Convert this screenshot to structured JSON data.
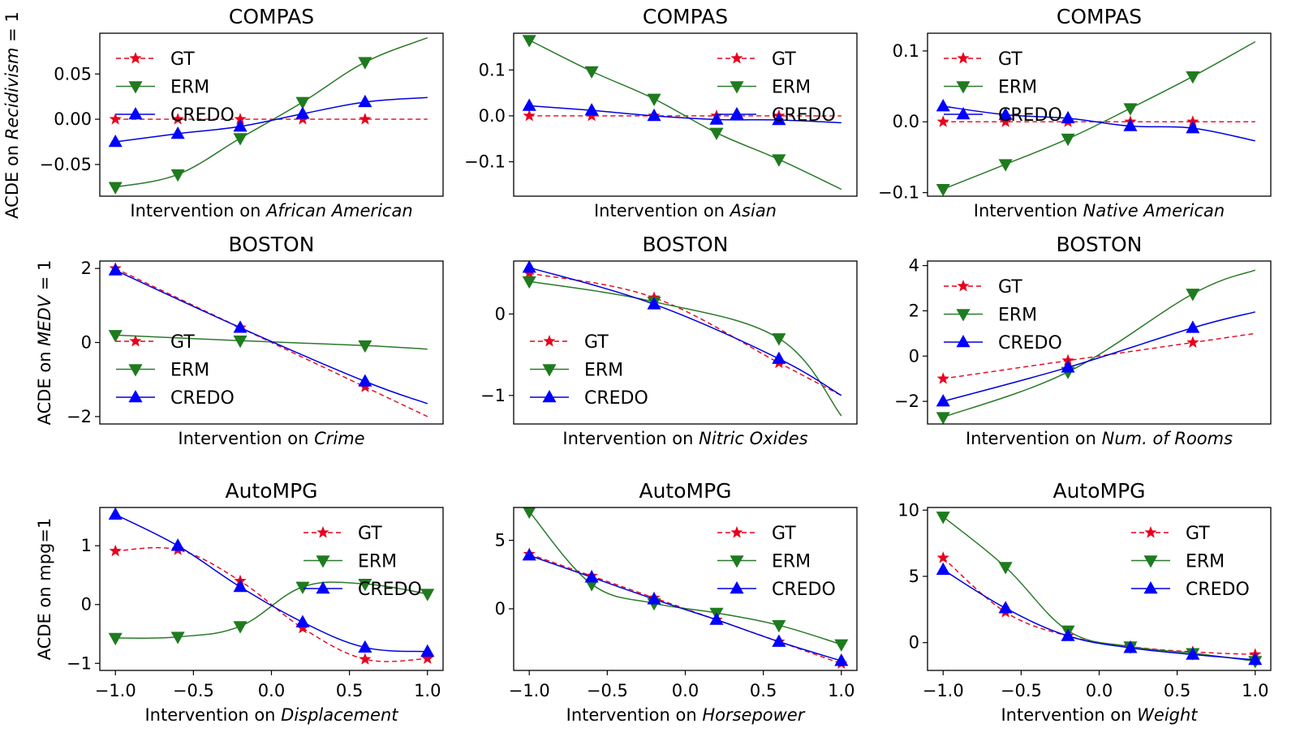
{
  "chart_data": [
    {
      "type": "line",
      "title": "COMPAS",
      "xlabel_prefix": "Intervention on ",
      "xlabel_italic": "African American",
      "ylabel_prefix": "ACDE on ",
      "ylabel_italic": "Recidivism",
      "ylabel_suffix": " = 1",
      "xlim": [
        -1.1,
        1.1
      ],
      "ylim": [
        -0.085,
        0.095
      ],
      "yticks": [
        -0.05,
        0.0,
        0.05
      ],
      "ytick_labels": [
        "−0.05",
        "0.00",
        "0.05"
      ],
      "show_xticks": false,
      "legend": "top-left",
      "x": [
        -1.0,
        -0.6,
        -0.2,
        0.2,
        0.6,
        1.0
      ],
      "series": [
        {
          "name": "GT",
          "values": [
            0.0,
            0.0,
            0.0,
            0.0,
            0.0,
            0.0
          ],
          "last_unmarked": true
        },
        {
          "name": "ERM",
          "values": [
            -0.075,
            -0.061,
            -0.021,
            0.019,
            0.063,
            0.09
          ],
          "last_unmarked": true
        },
        {
          "name": "CREDO",
          "values": [
            -0.025,
            -0.016,
            -0.008,
            0.006,
            0.019,
            0.024
          ],
          "last_unmarked": true
        }
      ]
    },
    {
      "type": "line",
      "title": "COMPAS",
      "xlabel_prefix": "Intervention on ",
      "xlabel_italic": "Asian",
      "xlim": [
        -1.1,
        1.1
      ],
      "ylim": [
        -0.175,
        0.18
      ],
      "yticks": [
        -0.1,
        0.0,
        0.1
      ],
      "ytick_labels": [
        "−0.1",
        "0.0",
        "0.1"
      ],
      "show_xticks": false,
      "legend": "top-right",
      "x": [
        -1.0,
        -0.6,
        -0.2,
        0.2,
        0.6,
        1.0
      ],
      "series": [
        {
          "name": "GT",
          "values": [
            0.0,
            0.0,
            0.0,
            0.0,
            0.0,
            0.0
          ],
          "last_unmarked": true
        },
        {
          "name": "ERM",
          "values": [
            0.165,
            0.097,
            0.037,
            -0.037,
            -0.095,
            -0.16
          ],
          "last_unmarked": true
        },
        {
          "name": "CREDO",
          "values": [
            0.022,
            0.012,
            0.0,
            -0.008,
            -0.009,
            -0.015
          ],
          "last_unmarked": true
        }
      ]
    },
    {
      "type": "line",
      "title": "COMPAS",
      "xlabel_prefix": "Intervention ",
      "xlabel_italic": "Native American",
      "xlim": [
        -1.1,
        1.1
      ],
      "ylim": [
        -0.105,
        0.125
      ],
      "yticks": [
        -0.1,
        0.0,
        0.1
      ],
      "ytick_labels": [
        "−0.1",
        "0.0",
        "0.1"
      ],
      "show_xticks": false,
      "legend": "top-left",
      "x": [
        -1.0,
        -0.6,
        -0.2,
        0.2,
        0.6,
        1.0
      ],
      "series": [
        {
          "name": "GT",
          "values": [
            0.0,
            0.0,
            0.0,
            0.0,
            0.0,
            0.0
          ],
          "last_unmarked": true
        },
        {
          "name": "ERM",
          "values": [
            -0.095,
            -0.06,
            -0.024,
            0.019,
            0.064,
            0.113
          ],
          "last_unmarked": true
        },
        {
          "name": "CREDO",
          "values": [
            0.022,
            0.01,
            0.005,
            -0.006,
            -0.009,
            -0.027
          ],
          "last_unmarked": true
        }
      ]
    },
    {
      "type": "line",
      "title": "BOSTON",
      "xlabel_prefix": "Intervention on ",
      "xlabel_italic": "Crime",
      "ylabel_prefix": "ACDE on ",
      "ylabel_italic": "MEDV",
      "ylabel_suffix": " = 1",
      "xlim": [
        -1.1,
        1.1
      ],
      "ylim": [
        -2.2,
        2.2
      ],
      "yticks": [
        -2,
        0,
        2
      ],
      "ytick_labels": [
        "−2",
        "0",
        "2"
      ],
      "show_xticks": false,
      "legend": "center-left",
      "x": [
        -1.0,
        -0.2,
        0.6,
        1.0
      ],
      "series": [
        {
          "name": "GT",
          "values": [
            2.0,
            0.4,
            -1.2,
            -2.0
          ],
          "last_unmarked": true
        },
        {
          "name": "ERM",
          "values": [
            0.2,
            0.05,
            -0.08,
            -0.18
          ],
          "last_unmarked": true
        },
        {
          "name": "CREDO",
          "values": [
            1.95,
            0.4,
            -1.05,
            -1.65
          ],
          "last_unmarked": true
        }
      ]
    },
    {
      "type": "line",
      "title": "BOSTON",
      "xlabel_prefix": "Intervention on ",
      "xlabel_italic": "Nitric Oxides",
      "xlim": [
        -1.1,
        1.1
      ],
      "ylim": [
        -1.35,
        0.65
      ],
      "yticks": [
        -1,
        0
      ],
      "ytick_labels": [
        "−1",
        "0"
      ],
      "show_xticks": false,
      "legend": "lower-left",
      "x": [
        -1.0,
        -0.2,
        0.6,
        1.0
      ],
      "series": [
        {
          "name": "GT",
          "values": [
            0.5,
            0.2,
            -0.6,
            -1.0
          ],
          "last_unmarked": true
        },
        {
          "name": "ERM",
          "values": [
            0.4,
            0.15,
            -0.3,
            -1.25
          ],
          "last_unmarked": true
        },
        {
          "name": "CREDO",
          "values": [
            0.57,
            0.12,
            -0.55,
            -1.0
          ],
          "last_unmarked": true
        }
      ]
    },
    {
      "type": "line",
      "title": "BOSTON",
      "xlabel_prefix": "Intervention on ",
      "xlabel_italic": "Num. of Rooms",
      "xlim": [
        -1.1,
        1.1
      ],
      "ylim": [
        -3.0,
        4.2
      ],
      "yticks": [
        -2,
        0,
        2,
        4
      ],
      "ytick_labels": [
        "−2",
        "0",
        "2",
        "4"
      ],
      "show_xticks": false,
      "legend": "top-left",
      "x": [
        -1.0,
        -0.2,
        0.6,
        1.0
      ],
      "series": [
        {
          "name": "GT",
          "values": [
            -1.0,
            -0.2,
            0.6,
            1.0
          ],
          "last_unmarked": true
        },
        {
          "name": "ERM",
          "values": [
            -2.7,
            -0.7,
            2.75,
            3.8
          ],
          "last_unmarked": true
        },
        {
          "name": "CREDO",
          "values": [
            -2.0,
            -0.5,
            1.25,
            1.95
          ],
          "last_unmarked": true
        }
      ]
    },
    {
      "type": "line",
      "title": "AutoMPG",
      "xlabel_prefix": "Intervention on ",
      "xlabel_italic": "Displacement",
      "ylabel_prefix": "ACDE on mpg=1",
      "ylabel_italic": "",
      "ylabel_suffix": "",
      "xlim": [
        -1.1,
        1.1
      ],
      "ylim": [
        -1.12,
        1.65
      ],
      "yticks": [
        -1,
        0,
        1
      ],
      "ytick_labels": [
        "−1",
        "0",
        "1"
      ],
      "show_xticks": true,
      "xticks": [
        -1.0,
        -0.5,
        0.0,
        0.5,
        1.0
      ],
      "xtick_labels": [
        "−1.0",
        "−0.5",
        "0.0",
        "0.5",
        "1.0"
      ],
      "legend": "top-right",
      "x": [
        -1.0,
        -0.6,
        -0.2,
        0.2,
        0.6,
        1.0
      ],
      "series": [
        {
          "name": "GT",
          "values": [
            0.91,
            0.93,
            0.4,
            -0.4,
            -0.93,
            -0.92
          ],
          "last_unmarked": false
        },
        {
          "name": "ERM",
          "values": [
            -0.57,
            -0.55,
            -0.37,
            0.3,
            0.35,
            0.18
          ],
          "last_unmarked": false
        },
        {
          "name": "CREDO",
          "values": [
            1.53,
            1.0,
            0.3,
            -0.3,
            -0.73,
            -0.8
          ],
          "last_unmarked": false
        }
      ]
    },
    {
      "type": "line",
      "title": "AutoMPG",
      "xlabel_prefix": "Intervention on ",
      "xlabel_italic": "Horsepower",
      "xlim": [
        -1.1,
        1.1
      ],
      "ylim": [
        -4.5,
        7.4
      ],
      "yticks": [
        0,
        5
      ],
      "ytick_labels": [
        "0",
        "5"
      ],
      "show_xticks": true,
      "xticks": [
        -1.0,
        -0.5,
        0.0,
        0.5,
        1.0
      ],
      "xtick_labels": [
        "−1.0",
        "−0.5",
        "0.0",
        "0.5",
        "1.0"
      ],
      "legend": "top-right",
      "x": [
        -1.0,
        -0.6,
        -0.2,
        0.2,
        0.6,
        1.0
      ],
      "series": [
        {
          "name": "GT",
          "values": [
            4.0,
            2.4,
            0.8,
            -0.8,
            -2.4,
            -4.0
          ],
          "last_unmarked": false
        },
        {
          "name": "ERM",
          "values": [
            7.1,
            1.8,
            0.4,
            -0.3,
            -1.2,
            -2.6
          ],
          "last_unmarked": false
        },
        {
          "name": "CREDO",
          "values": [
            3.9,
            2.3,
            0.7,
            -0.8,
            -2.4,
            -3.8
          ],
          "last_unmarked": false
        }
      ]
    },
    {
      "type": "line",
      "title": "AutoMPG",
      "xlabel_prefix": "Intervention on ",
      "xlabel_italic": "Weight",
      "xlim": [
        -1.1,
        1.1
      ],
      "ylim": [
        -2.1,
        10.2
      ],
      "yticks": [
        0,
        5,
        10
      ],
      "ytick_labels": [
        "0",
        "5",
        "10"
      ],
      "show_xticks": true,
      "xticks": [
        -1.0,
        -0.5,
        0.0,
        0.5,
        1.0
      ],
      "xtick_labels": [
        "−1.0",
        "−0.5",
        "0.0",
        "0.5",
        "1.0"
      ],
      "legend": "top-right",
      "x": [
        -1.0,
        -0.6,
        -0.2,
        0.2,
        0.6,
        1.0
      ],
      "series": [
        {
          "name": "GT",
          "values": [
            6.4,
            2.3,
            0.5,
            -0.3,
            -0.7,
            -0.9
          ],
          "last_unmarked": false
        },
        {
          "name": "ERM",
          "values": [
            9.5,
            5.7,
            0.9,
            -0.3,
            -0.8,
            -1.4
          ],
          "last_unmarked": false
        },
        {
          "name": "CREDO",
          "values": [
            5.5,
            2.6,
            0.5,
            -0.4,
            -0.9,
            -1.3
          ],
          "last_unmarked": false
        }
      ]
    }
  ],
  "series_style": {
    "GT": {
      "color": "#e8001c",
      "dash": true,
      "marker": "star"
    },
    "ERM": {
      "color": "#2a7a2a",
      "marker_color": "#1e7b1e",
      "dash": false,
      "marker": "triangle-down"
    },
    "CREDO": {
      "color": "#0000e0",
      "marker_color": "#0000ff",
      "dash": false,
      "marker": "triangle-up"
    }
  }
}
